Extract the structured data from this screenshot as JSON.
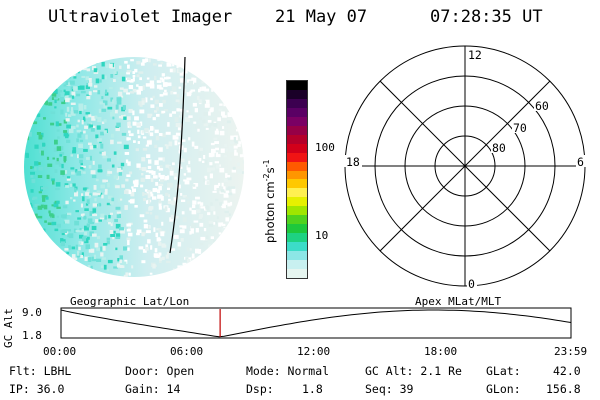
{
  "header": {
    "instrument": "Ultraviolet Imager",
    "date": "21 May 07",
    "time": "07:28:35 UT"
  },
  "colorbar": {
    "unit_label": "photon cm",
    "unit_sup1": "-2",
    "unit_s": "s",
    "unit_sup2": "-1",
    "ticks": [
      "100",
      "10"
    ],
    "colors": [
      "#000000",
      "#1a0028",
      "#3c0050",
      "#5a0064",
      "#7a0064",
      "#960046",
      "#b4002a",
      "#d2001a",
      "#f01414",
      "#ff5a00",
      "#ff9600",
      "#ffc800",
      "#fff050",
      "#e6f000",
      "#a0e600",
      "#50d21e",
      "#1ec83c",
      "#1ed282",
      "#3cdcc8",
      "#8ce6e6",
      "#c8f0f0",
      "#e6f5f0"
    ]
  },
  "polar": {
    "labels": {
      "top": "12",
      "bottom": "0",
      "left": "18",
      "right": "6"
    },
    "lat_labels": [
      "60",
      "70",
      "80"
    ]
  },
  "timeline": {
    "ylabel": "GC Alt",
    "yticks": [
      "9.0",
      "1.8"
    ],
    "left_title": "Geographic Lat/Lon",
    "right_title": "Apex MLat/MLT",
    "xticks": [
      "00:00",
      "06:00",
      "12:00",
      "18:00",
      "23:59"
    ],
    "current_time_fraction": 0.312
  },
  "info": {
    "filter": "Flt: LBHL",
    "ip": "IP: 36.0",
    "door": "Door: Open",
    "gain": "Gain: 14",
    "mode": "Mode: Normal",
    "dsp": "Dsp:",
    "dsp_value": "1.8",
    "gc_alt": "GC Alt: 2.1 Re",
    "seq": "Seq: 39",
    "glat": "GLat:",
    "glat_value": "42.0",
    "glon": "GLon:",
    "glon_value": "156.8"
  }
}
